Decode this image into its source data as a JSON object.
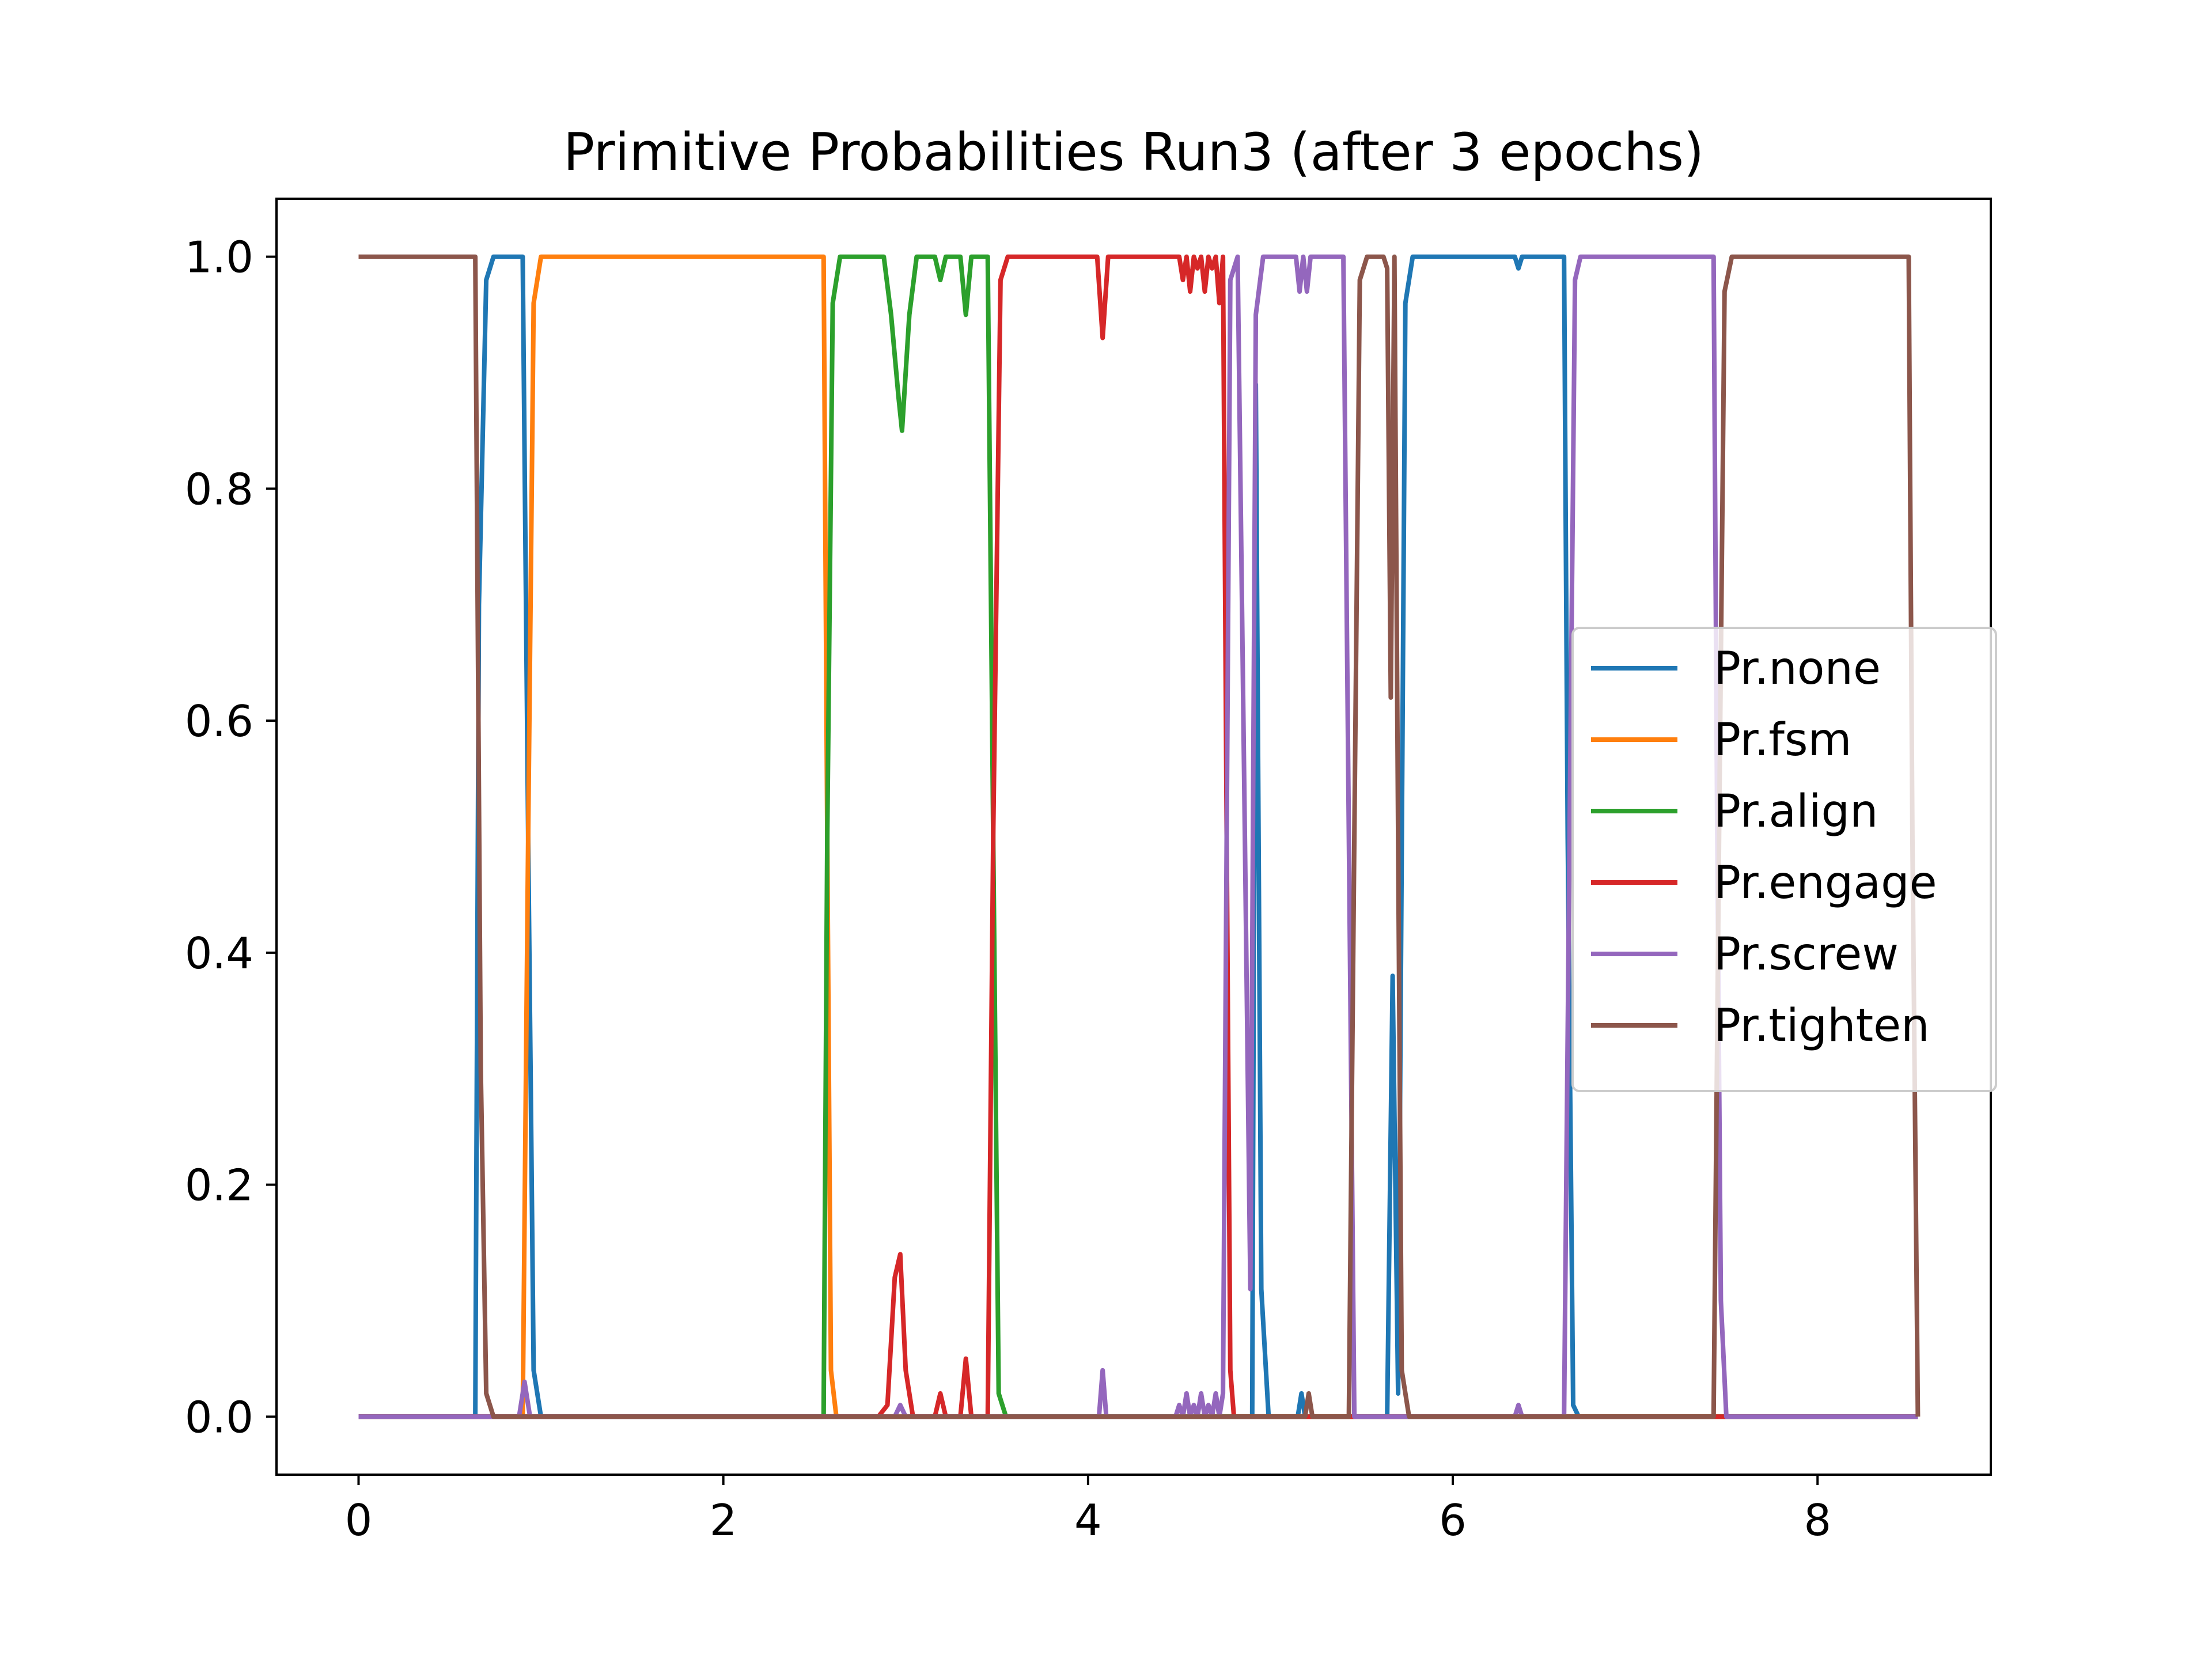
{
  "chart_data": {
    "type": "line",
    "title": "Primitive Probabilities Run3 (after 3 epochs)",
    "xlabel": "",
    "ylabel": "",
    "xlim": [
      -0.45,
      8.95
    ],
    "ylim": [
      -0.05,
      1.05
    ],
    "x_ticks": [
      0,
      2,
      4,
      6,
      8
    ],
    "x_tick_labels": [
      "0",
      "2",
      "4",
      "6",
      "8"
    ],
    "y_ticks": [
      0.0,
      0.2,
      0.4,
      0.6,
      0.8,
      1.0
    ],
    "y_tick_labels": [
      "0.0",
      "0.2",
      "0.4",
      "0.6",
      "0.8",
      "1.0"
    ],
    "grid": false,
    "legend_position": "center-right",
    "series": [
      {
        "name": "Pr.none",
        "color": "#1f77b4",
        "points": [
          [
            0,
            0
          ],
          [
            0.64,
            0
          ],
          [
            0.66,
            0.7
          ],
          [
            0.7,
            0.98
          ],
          [
            0.74,
            1
          ],
          [
            0.9,
            1
          ],
          [
            0.93,
            0.5
          ],
          [
            0.96,
            0.04
          ],
          [
            1.0,
            0
          ],
          [
            4.9,
            0
          ],
          [
            4.92,
            0.89
          ],
          [
            4.95,
            0.11
          ],
          [
            4.99,
            0
          ],
          [
            5.15,
            0
          ],
          [
            5.17,
            0.02
          ],
          [
            5.19,
            0
          ],
          [
            5.64,
            0
          ],
          [
            5.67,
            0.38
          ],
          [
            5.7,
            0.02
          ],
          [
            5.74,
            0.96
          ],
          [
            5.78,
            1
          ],
          [
            6.34,
            1
          ],
          [
            6.36,
            0.99
          ],
          [
            6.38,
            1
          ],
          [
            6.61,
            1
          ],
          [
            6.63,
            0.5
          ],
          [
            6.66,
            0.01
          ],
          [
            6.69,
            0
          ],
          [
            8.55,
            0
          ]
        ]
      },
      {
        "name": "Pr.fsm",
        "color": "#ff7f0e",
        "points": [
          [
            0,
            0
          ],
          [
            0.9,
            0
          ],
          [
            0.93,
            0.5
          ],
          [
            0.96,
            0.96
          ],
          [
            1.0,
            1
          ],
          [
            2.55,
            1
          ],
          [
            2.57,
            0.5
          ],
          [
            2.59,
            0.04
          ],
          [
            2.62,
            0
          ],
          [
            8.55,
            0
          ]
        ]
      },
      {
        "name": "Pr.align",
        "color": "#2ca02c",
        "points": [
          [
            0,
            0
          ],
          [
            2.55,
            0
          ],
          [
            2.57,
            0.5
          ],
          [
            2.6,
            0.96
          ],
          [
            2.64,
            1
          ],
          [
            2.88,
            1
          ],
          [
            2.92,
            0.95
          ],
          [
            2.96,
            0.88
          ],
          [
            2.98,
            0.85
          ],
          [
            3.02,
            0.95
          ],
          [
            3.06,
            1
          ],
          [
            3.16,
            1
          ],
          [
            3.19,
            0.98
          ],
          [
            3.22,
            1
          ],
          [
            3.3,
            1
          ],
          [
            3.33,
            0.95
          ],
          [
            3.36,
            1
          ],
          [
            3.45,
            1
          ],
          [
            3.48,
            0.5
          ],
          [
            3.51,
            0.02
          ],
          [
            3.55,
            0
          ],
          [
            8.55,
            0
          ]
        ]
      },
      {
        "name": "Pr.engage",
        "color": "#d62728",
        "points": [
          [
            0,
            0
          ],
          [
            2.85,
            0
          ],
          [
            2.9,
            0.01
          ],
          [
            2.94,
            0.12
          ],
          [
            2.97,
            0.14
          ],
          [
            3.0,
            0.04
          ],
          [
            3.04,
            0
          ],
          [
            3.16,
            0
          ],
          [
            3.19,
            0.02
          ],
          [
            3.22,
            0
          ],
          [
            3.3,
            0
          ],
          [
            3.33,
            0.05
          ],
          [
            3.36,
            0
          ],
          [
            3.45,
            0
          ],
          [
            3.48,
            0.5
          ],
          [
            3.52,
            0.98
          ],
          [
            3.56,
            1
          ],
          [
            4.05,
            1
          ],
          [
            4.08,
            0.93
          ],
          [
            4.11,
            1
          ],
          [
            4.5,
            1
          ],
          [
            4.52,
            0.98
          ],
          [
            4.54,
            1
          ],
          [
            4.56,
            0.97
          ],
          [
            4.58,
            1
          ],
          [
            4.6,
            0.99
          ],
          [
            4.62,
            1
          ],
          [
            4.64,
            0.97
          ],
          [
            4.66,
            1
          ],
          [
            4.68,
            0.99
          ],
          [
            4.7,
            1
          ],
          [
            4.72,
            0.96
          ],
          [
            4.74,
            1
          ],
          [
            4.76,
            0.5
          ],
          [
            4.78,
            0.04
          ],
          [
            4.8,
            0
          ],
          [
            8.55,
            0
          ]
        ]
      },
      {
        "name": "Pr.screw",
        "color": "#9467bd",
        "points": [
          [
            0,
            0
          ],
          [
            0.88,
            0
          ],
          [
            0.91,
            0.03
          ],
          [
            0.94,
            0
          ],
          [
            2.94,
            0
          ],
          [
            2.97,
            0.01
          ],
          [
            3.0,
            0
          ],
          [
            4.06,
            0
          ],
          [
            4.08,
            0.04
          ],
          [
            4.1,
            0
          ],
          [
            4.48,
            0
          ],
          [
            4.5,
            0.01
          ],
          [
            4.52,
            0
          ],
          [
            4.54,
            0.02
          ],
          [
            4.56,
            0
          ],
          [
            4.58,
            0.01
          ],
          [
            4.6,
            0
          ],
          [
            4.62,
            0.02
          ],
          [
            4.64,
            0
          ],
          [
            4.66,
            0.01
          ],
          [
            4.68,
            0
          ],
          [
            4.7,
            0.02
          ],
          [
            4.72,
            0
          ],
          [
            4.74,
            0.02
          ],
          [
            4.76,
            0.5
          ],
          [
            4.78,
            0.98
          ],
          [
            4.82,
            1
          ],
          [
            4.86,
            0.5
          ],
          [
            4.89,
            0.11
          ],
          [
            4.92,
            0.95
          ],
          [
            4.96,
            1
          ],
          [
            5.14,
            1
          ],
          [
            5.16,
            0.97
          ],
          [
            5.18,
            1
          ],
          [
            5.2,
            0.97
          ],
          [
            5.22,
            1
          ],
          [
            5.4,
            1
          ],
          [
            5.43,
            0.5
          ],
          [
            5.46,
            0
          ],
          [
            6.34,
            0
          ],
          [
            6.36,
            0.01
          ],
          [
            6.38,
            0
          ],
          [
            6.61,
            0
          ],
          [
            6.64,
            0.5
          ],
          [
            6.67,
            0.98
          ],
          [
            6.7,
            1
          ],
          [
            7.43,
            1
          ],
          [
            7.45,
            0.5
          ],
          [
            7.47,
            0.1
          ],
          [
            7.5,
            0
          ],
          [
            8.55,
            0
          ]
        ]
      },
      {
        "name": "Pr.tighten",
        "color": "#8c564b",
        "points": [
          [
            0,
            1
          ],
          [
            0.64,
            1
          ],
          [
            0.67,
            0.3
          ],
          [
            0.7,
            0.02
          ],
          [
            0.74,
            0
          ],
          [
            5.19,
            0
          ],
          [
            5.21,
            0.02
          ],
          [
            5.23,
            0
          ],
          [
            5.43,
            0
          ],
          [
            5.46,
            0.5
          ],
          [
            5.49,
            0.98
          ],
          [
            5.53,
            1
          ],
          [
            5.62,
            1
          ],
          [
            5.64,
            0.99
          ],
          [
            5.66,
            0.62
          ],
          [
            5.68,
            1
          ],
          [
            5.7,
            0.5
          ],
          [
            5.72,
            0.04
          ],
          [
            5.76,
            0
          ],
          [
            7.43,
            0
          ],
          [
            7.46,
            0.5
          ],
          [
            7.49,
            0.97
          ],
          [
            7.53,
            1
          ],
          [
            8.5,
            1
          ],
          [
            8.52,
            0.5
          ],
          [
            8.55,
            0
          ]
        ]
      }
    ]
  }
}
